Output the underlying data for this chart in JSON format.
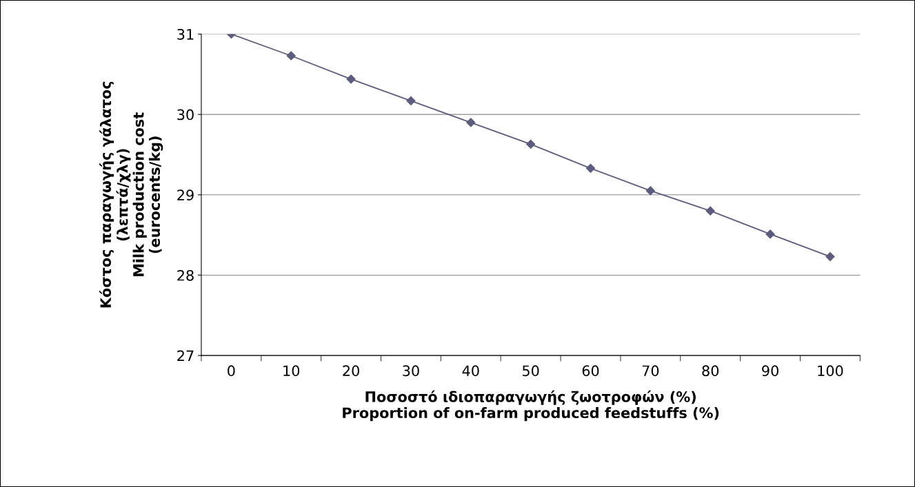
{
  "chart_data": {
    "type": "line",
    "xlabel": "Ποσοστό ιδιοπαραγωγής ζωοτροφών (%)\nProportion of on-farm produced feedstuffs (%)",
    "ylabel": "Κόστος παραγωγής γάλατος\n(λεπτά/χλγ)\nMilk production cost\n(eurocents/kg)",
    "categories": [
      "0",
      "10",
      "20",
      "30",
      "40",
      "50",
      "60",
      "70",
      "80",
      "90",
      "100"
    ],
    "series": [
      {
        "color": "#5c5c7e",
        "values": [
          31.0,
          30.73,
          30.44,
          30.17,
          29.9,
          29.63,
          29.33,
          29.05,
          28.8,
          28.51,
          28.23
        ]
      }
    ],
    "ylim": [
      27,
      31
    ],
    "yticks": [
      27,
      28,
      29,
      30,
      31
    ],
    "grid": "y",
    "marker": "diamond",
    "line_style": "solid"
  }
}
